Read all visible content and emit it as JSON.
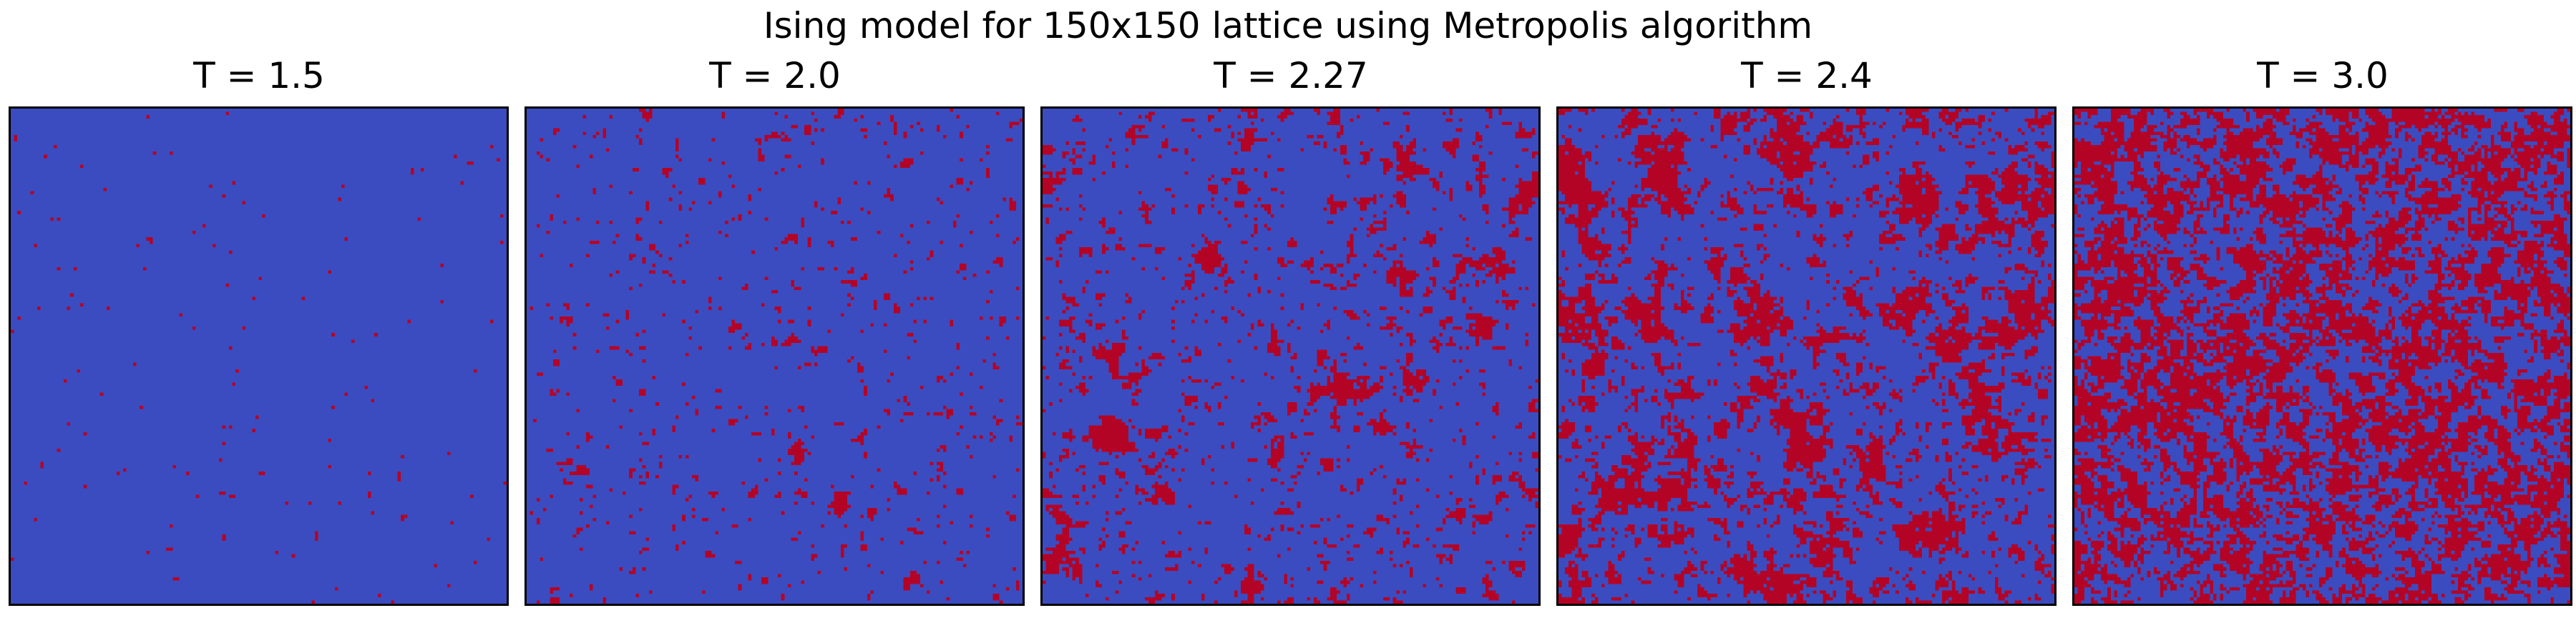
{
  "chart_data": {
    "type": "heatmap",
    "title": "Ising model for 150x150 lattice using Metropolis algorithm",
    "lattice_size": 150,
    "colors": {
      "spin_down": "#3b4cc0",
      "spin_up": "#b40426"
    },
    "grid": false,
    "panels": [
      {
        "title": "T = 1.5",
        "temperature": 1.5,
        "spin_up_fraction": 0.006
      },
      {
        "title": "T = 2.0",
        "temperature": 2.0,
        "spin_up_fraction": 0.07
      },
      {
        "title": "T = 2.27",
        "temperature": 2.27,
        "spin_up_fraction": 0.24
      },
      {
        "title": "T = 2.4",
        "temperature": 2.4,
        "spin_up_fraction": 0.34
      },
      {
        "title": "T = 3.0",
        "temperature": 3.0,
        "spin_up_fraction": 0.46
      }
    ]
  }
}
